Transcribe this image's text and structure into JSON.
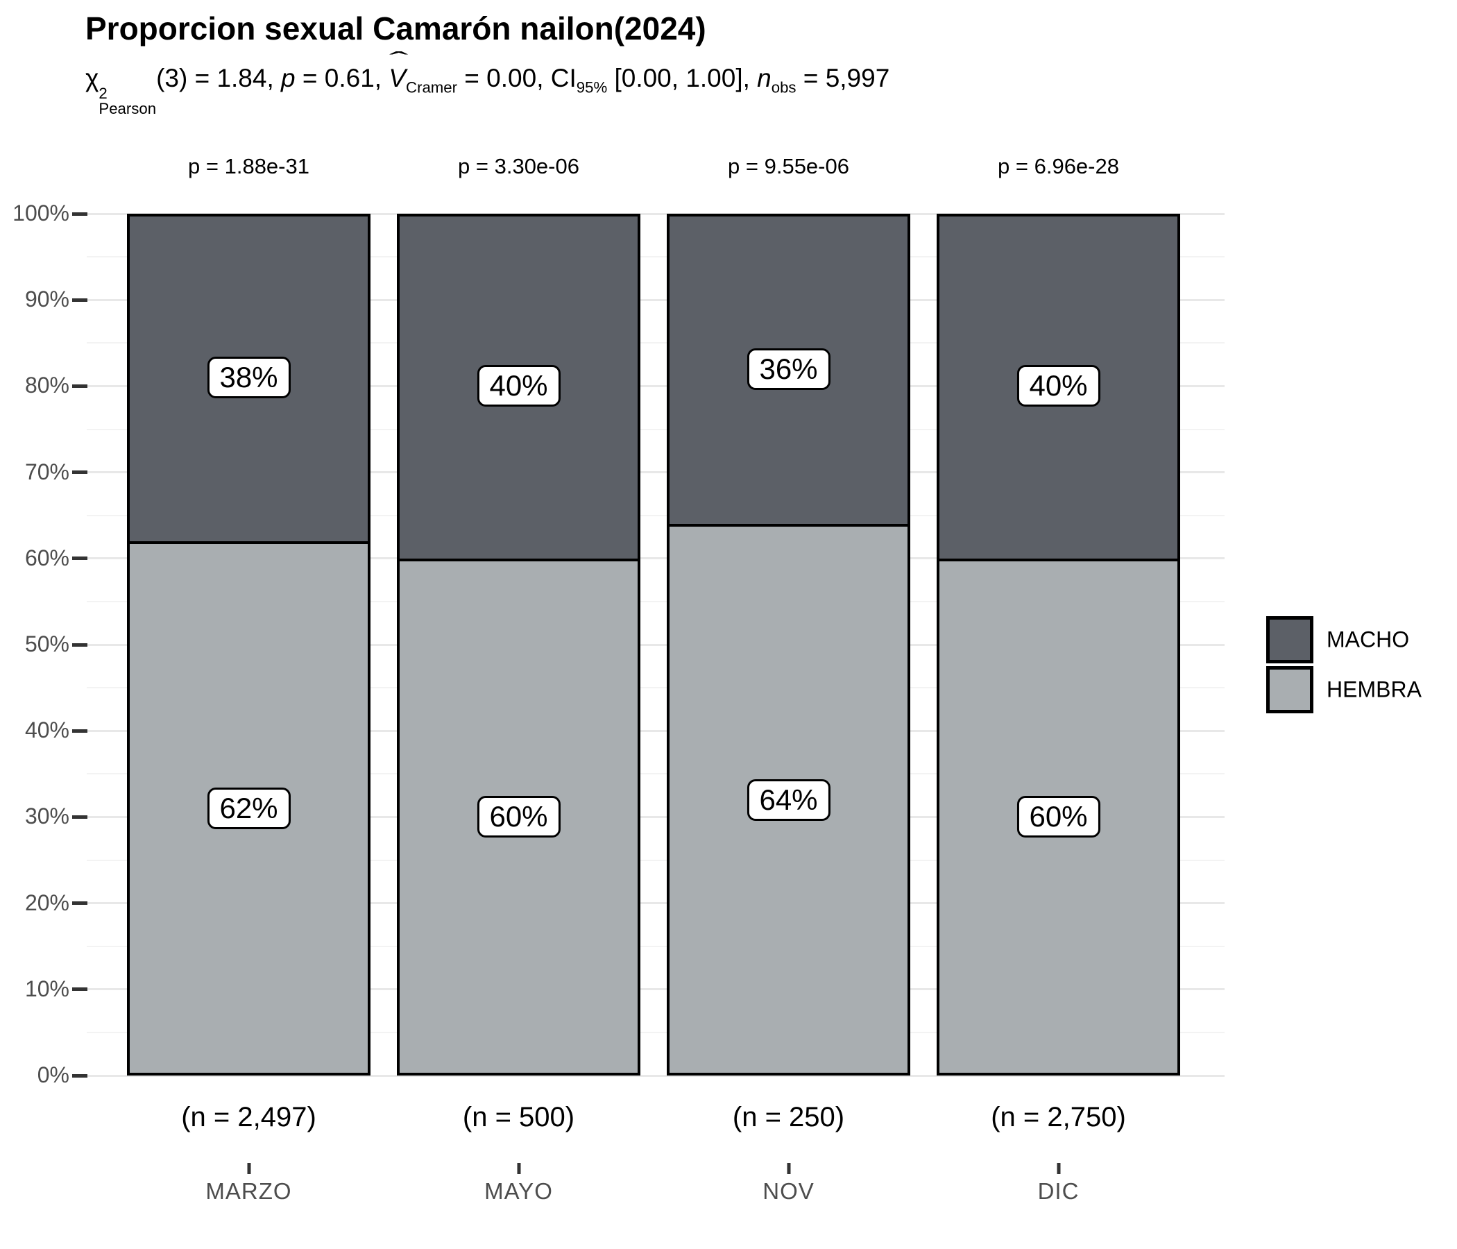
{
  "title": "Proporcion sexual Camarón nailon(2024)",
  "subtitle": {
    "chi": "χ",
    "chi_sup": "2",
    "chi_sub": "Pearson",
    "seg1": "(3) = 1.84, ",
    "p_sym": "p",
    "seg2": " = 0.61, ",
    "v_sym": "V",
    "v_hat": "ˆ",
    "v_sub": "Cramer",
    "seg3": " = 0.00, CI",
    "ci_sub": "95%",
    "seg4": " [0.00, 1.00], ",
    "n_sym": "n",
    "n_sub": "obs",
    "seg5": " = 5,997"
  },
  "chart_data": {
    "type": "bar",
    "stacked": true,
    "percent_scale": true,
    "title": "Proporcion sexual Camarón nailon(2024)",
    "categories": [
      "MARZO",
      "MAYO",
      "NOV",
      "DIC"
    ],
    "series": [
      {
        "name": "MACHO",
        "values": [
          38,
          40,
          36,
          40
        ],
        "color": "#5C6067"
      },
      {
        "name": "HEMBRA",
        "values": [
          62,
          60,
          64,
          60
        ],
        "color": "#A9AEB1"
      }
    ],
    "segment_labels": {
      "macho": [
        "38%",
        "40%",
        "36%",
        "40%"
      ],
      "hembra": [
        "62%",
        "60%",
        "64%",
        "60%"
      ]
    },
    "bar_p_values": [
      "p = 1.88e-31",
      "p = 3.30e-06",
      "p = 9.55e-06",
      "p = 6.96e-28"
    ],
    "bar_n_labels": [
      "(n = 2,497)",
      "(n = 500)",
      "(n = 250)",
      "(n = 2,750)"
    ],
    "y_tick_labels": [
      "0%",
      "10%",
      "20%",
      "30%",
      "40%",
      "50%",
      "60%",
      "70%",
      "80%",
      "90%",
      "100%"
    ],
    "ylim": [
      0,
      100
    ],
    "grid": true,
    "legend_position": "right",
    "colors": {
      "bar_stroke": "#000000",
      "grid_major": "#e8e8e8",
      "grid_minor": "#f3f3f3",
      "axis_text": "#4d4d4d",
      "tick": "#333333"
    }
  }
}
